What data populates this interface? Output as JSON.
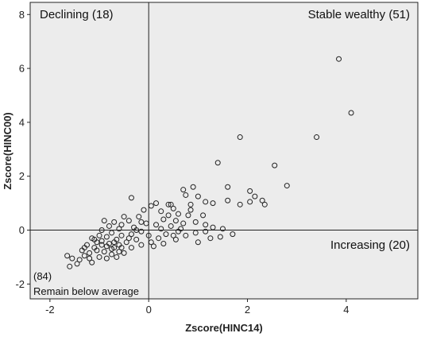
{
  "chart_data": {
    "type": "scatter",
    "xlabel": "Zscore(HINC14)",
    "ylabel": "Zscore(HINC00)",
    "xlim": [
      -2.4,
      5.45
    ],
    "ylim": [
      -2.55,
      8.45
    ],
    "xticks": [
      -2,
      0,
      2,
      4
    ],
    "yticks": [
      -2,
      0,
      2,
      4,
      6,
      8
    ],
    "xtick_labels": [
      "-2",
      "0",
      "2",
      "4"
    ],
    "ytick_labels": [
      "-2",
      "0",
      "2",
      "4",
      "6",
      "8"
    ],
    "reference_lines": {
      "x": 0,
      "y": 0
    },
    "grid": false,
    "background": "#ececec",
    "marker": "open-circle",
    "quadrant_labels": {
      "top_left": "Declining (18)",
      "top_right": "Stable wealthy (51)",
      "bottom_right": "Increasing (20)",
      "bottom_left_count": "(84)",
      "bottom_left_name": "Remain below average"
    },
    "points": [
      [
        3.85,
        6.35
      ],
      [
        4.1,
        4.35
      ],
      [
        3.4,
        3.45
      ],
      [
        1.85,
        3.45
      ],
      [
        2.55,
        2.4
      ],
      [
        1.4,
        2.5
      ],
      [
        2.8,
        1.65
      ],
      [
        1.6,
        1.6
      ],
      [
        2.05,
        1.45
      ],
      [
        2.15,
        1.25
      ],
      [
        2.3,
        1.1
      ],
      [
        2.05,
        1.05
      ],
      [
        2.35,
        0.95
      ],
      [
        1.85,
        0.95
      ],
      [
        1.6,
        1.1
      ],
      [
        1.3,
        1.0
      ],
      [
        1.15,
        1.05
      ],
      [
        0.9,
        1.6
      ],
      [
        0.7,
        1.5
      ],
      [
        0.75,
        1.3
      ],
      [
        1.0,
        1.25
      ],
      [
        0.85,
        0.95
      ],
      [
        -0.35,
        1.2
      ],
      [
        0.15,
        1.0
      ],
      [
        0.45,
        0.95
      ],
      [
        -0.1,
        0.75
      ],
      [
        0.05,
        0.9
      ],
      [
        0.5,
        0.8
      ],
      [
        0.25,
        0.7
      ],
      [
        0.4,
        0.55
      ],
      [
        0.6,
        0.6
      ],
      [
        0.8,
        0.55
      ],
      [
        1.1,
        0.55
      ],
      [
        0.3,
        0.4
      ],
      [
        0.55,
        0.35
      ],
      [
        0.7,
        0.25
      ],
      [
        0.95,
        0.3
      ],
      [
        1.15,
        0.2
      ],
      [
        1.3,
        0.1
      ],
      [
        1.5,
        0.05
      ],
      [
        1.7,
        -0.15
      ],
      [
        1.45,
        -0.25
      ],
      [
        1.15,
        -0.05
      ],
      [
        0.95,
        -0.1
      ],
      [
        0.75,
        -0.2
      ],
      [
        0.55,
        -0.35
      ],
      [
        0.35,
        -0.15
      ],
      [
        0.2,
        -0.3
      ],
      [
        0.05,
        -0.45
      ],
      [
        0.25,
        0.05
      ],
      [
        0.45,
        0.15
      ],
      [
        0.65,
        0.05
      ],
      [
        0.15,
        0.2
      ],
      [
        -0.05,
        0.25
      ],
      [
        -0.2,
        0.5
      ],
      [
        -0.15,
        0.3
      ],
      [
        -0.3,
        0.1
      ],
      [
        -0.4,
        0.35
      ],
      [
        -0.55,
        0.2
      ],
      [
        -0.5,
        0.5
      ],
      [
        -0.6,
        0.05
      ],
      [
        -0.7,
        0.3
      ],
      [
        -0.8,
        0.15
      ],
      [
        -0.9,
        0.35
      ],
      [
        -0.95,
        0.0
      ],
      [
        -0.75,
        -0.1
      ],
      [
        -0.55,
        -0.2
      ],
      [
        -0.35,
        -0.15
      ],
      [
        -0.15,
        -0.05
      ],
      [
        0.0,
        -0.2
      ],
      [
        -0.25,
        -0.35
      ],
      [
        -0.45,
        -0.45
      ],
      [
        -0.65,
        -0.35
      ],
      [
        -0.85,
        -0.25
      ],
      [
        -1.05,
        -0.45
      ],
      [
        -1.0,
        -0.2
      ],
      [
        -1.15,
        -0.3
      ],
      [
        -1.25,
        -0.55
      ],
      [
        -1.1,
        -0.65
      ],
      [
        -0.95,
        -0.55
      ],
      [
        -0.8,
        -0.5
      ],
      [
        -0.7,
        -0.65
      ],
      [
        -0.6,
        -0.8
      ],
      [
        -0.75,
        -0.9
      ],
      [
        -0.9,
        -0.8
      ],
      [
        -1.05,
        -0.75
      ],
      [
        -1.2,
        -0.85
      ],
      [
        -1.3,
        -0.95
      ],
      [
        -1.4,
        -1.1
      ],
      [
        -1.45,
        -1.25
      ],
      [
        -1.55,
        -1.05
      ],
      [
        -1.65,
        -0.95
      ],
      [
        -1.6,
        -1.35
      ],
      [
        -1.35,
        -0.75
      ],
      [
        -1.2,
        -1.05
      ],
      [
        -1.0,
        -1.0
      ],
      [
        -0.85,
        -1.05
      ],
      [
        -0.65,
        -1.0
      ],
      [
        -0.5,
        -0.85
      ],
      [
        -0.35,
        -0.65
      ],
      [
        -0.15,
        -0.55
      ],
      [
        0.1,
        -0.6
      ],
      [
        0.3,
        -0.5
      ],
      [
        -1.1,
        -0.35
      ],
      [
        -0.95,
        -0.4
      ],
      [
        -0.85,
        -0.6
      ],
      [
        -0.7,
        -0.45
      ],
      [
        -1.3,
        -0.65
      ],
      [
        -0.6,
        -0.55
      ],
      [
        -0.4,
        -0.3
      ],
      [
        0.6,
        -0.05
      ],
      [
        0.85,
        0.75
      ],
      [
        0.4,
        0.95
      ],
      [
        -0.25,
        0.0
      ],
      [
        1.0,
        -0.45
      ],
      [
        1.25,
        -0.3
      ],
      [
        0.5,
        -0.2
      ],
      [
        -1.15,
        -1.2
      ],
      [
        -0.75,
        -0.7
      ],
      [
        -0.55,
        -0.65
      ]
    ]
  }
}
